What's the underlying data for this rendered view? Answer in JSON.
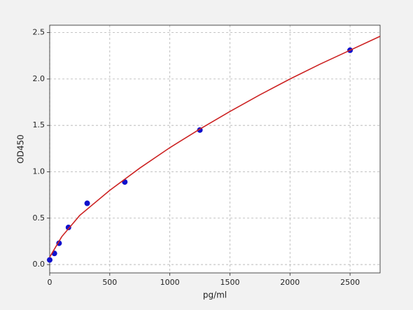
{
  "chart_data": {
    "type": "scatter",
    "xlabel": "pg/ml",
    "ylabel": "OD450",
    "points": {
      "x": [
        0,
        39,
        78,
        156,
        312,
        625,
        1250,
        2500
      ],
      "values": [
        0.05,
        0.12,
        0.23,
        0.4,
        0.66,
        0.89,
        1.45,
        2.31
      ],
      "color": "#1010cc"
    },
    "curve": {
      "x": [
        0,
        100,
        250,
        500,
        750,
        1000,
        1250,
        1500,
        1750,
        2000,
        2250,
        2500,
        2750
      ],
      "values": [
        0.08,
        0.3,
        0.53,
        0.8,
        1.04,
        1.26,
        1.46,
        1.65,
        1.83,
        2.0,
        2.16,
        2.31,
        2.46
      ],
      "color": "#cc2222"
    },
    "xlim": [
      0,
      2750
    ],
    "ylim": [
      -0.09,
      2.58
    ],
    "xticks": [
      0,
      500,
      1000,
      1500,
      2000,
      2500
    ],
    "yticks": [
      {
        "value": 0,
        "label": "0.0"
      },
      0.5,
      {
        "value": 1,
        "label": "1.0"
      },
      1.5,
      {
        "value": 2,
        "label": "2.0"
      },
      2.5
    ],
    "grid": true
  }
}
